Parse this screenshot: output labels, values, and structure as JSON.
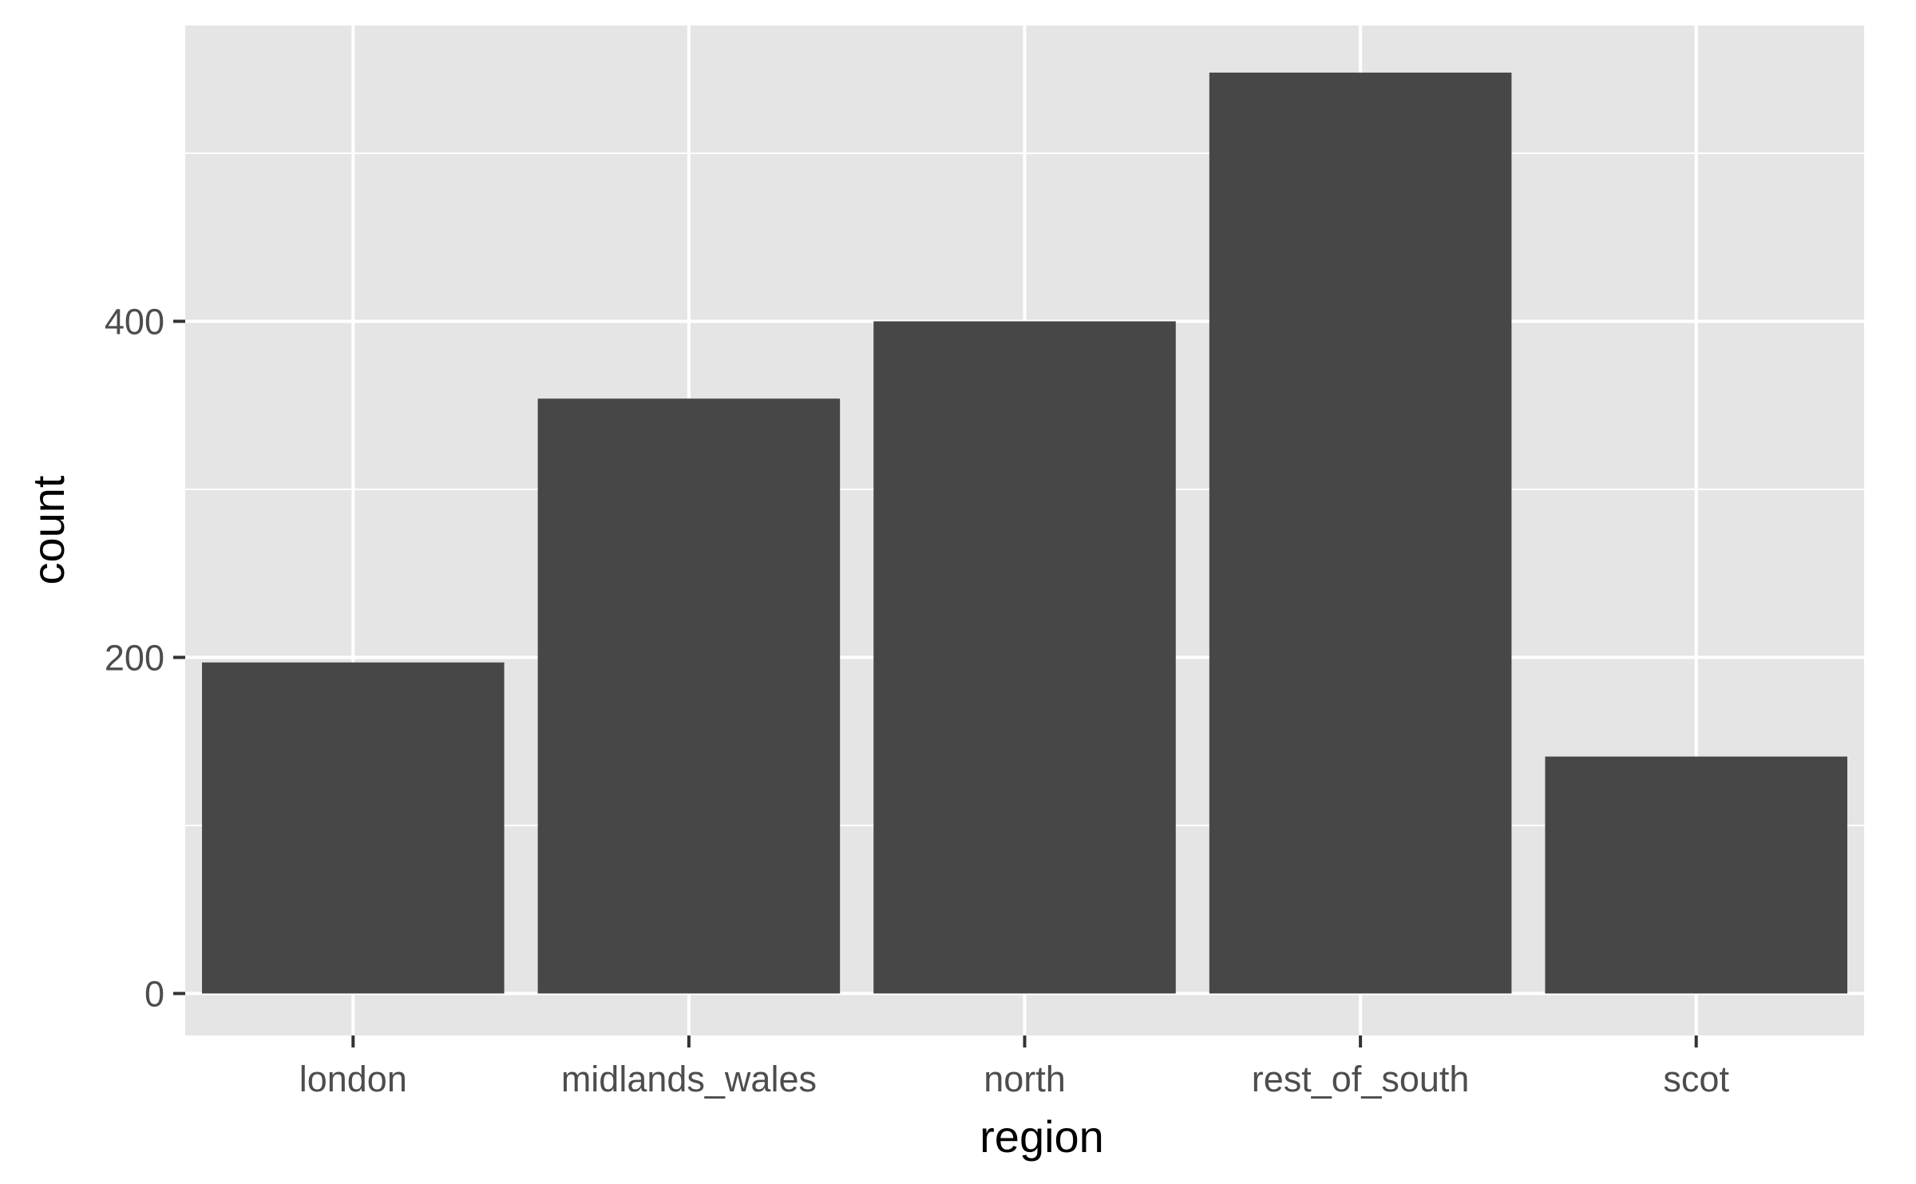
{
  "chart_data": {
    "type": "bar",
    "categories": [
      "london",
      "midlands_wales",
      "north",
      "rest_of_south",
      "scot"
    ],
    "values": [
      197,
      354,
      400,
      548,
      141
    ],
    "xlabel": "region",
    "ylabel": "count",
    "ylim": [
      -25,
      576
    ],
    "yticks": [
      0,
      200,
      400
    ],
    "yticks_labels": [
      "0",
      "200",
      "400"
    ],
    "y_minor_gridlines": [
      100,
      300,
      500
    ],
    "grid": true,
    "legend": "none",
    "colors": {
      "bar": "#474747",
      "panel": "#e5e5e5",
      "grid": "#ffffff",
      "tick_text": "#4d4d4d",
      "tick_mark": "#333333"
    }
  }
}
